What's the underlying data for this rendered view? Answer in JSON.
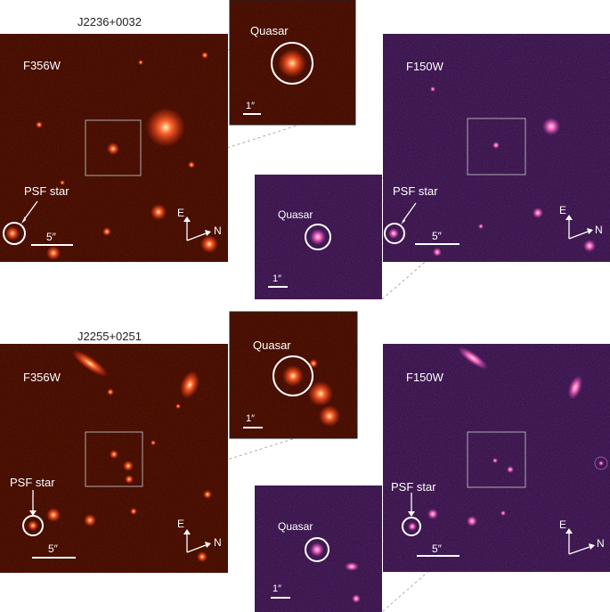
{
  "figure": {
    "titles": [
      "J2236+0032",
      "J2255+0251"
    ],
    "filter_labels": {
      "red": "F356W",
      "purple": "F150W"
    },
    "inset_label": "Quasar",
    "psf_label": "PSF star",
    "scale_main": "5″",
    "scale_inset": "1″",
    "compass": {
      "east": "E",
      "north": "N"
    },
    "colors": {
      "red_bg": "#3a0504",
      "purple_bg": "#2a0d3c",
      "red_source": "#ff5a2a",
      "purple_source": "#ff7ab0"
    }
  }
}
